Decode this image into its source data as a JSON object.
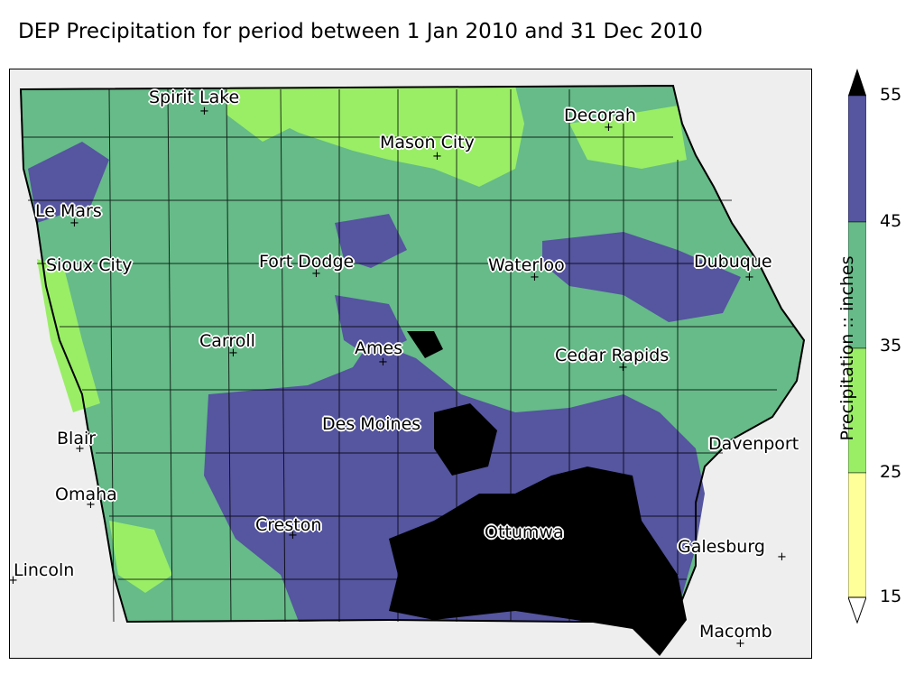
{
  "title": "DEP Precipitation for period between 1 Jan 2010 and 31 Dec 2010",
  "colorbar": {
    "label": "Precipitation :: inches",
    "ticks": [
      "55",
      "45",
      "35",
      "25",
      "15"
    ],
    "bins": [
      {
        "range": "15-25",
        "color": "#ffff99"
      },
      {
        "range": "25-35",
        "color": "#99ee66"
      },
      {
        "range": "35-45",
        "color": "#66bb88"
      },
      {
        "range": "45-55",
        "color": "#5555a0"
      },
      {
        "range": ">55",
        "color": "#000000"
      }
    ],
    "extend": "both"
  },
  "cities": [
    {
      "name": "Spirit Lake"
    },
    {
      "name": "Decorah"
    },
    {
      "name": "Mason City"
    },
    {
      "name": "Le Mars"
    },
    {
      "name": "Sioux City"
    },
    {
      "name": "Fort Dodge"
    },
    {
      "name": "Waterloo"
    },
    {
      "name": "Dubuque"
    },
    {
      "name": "Carroll"
    },
    {
      "name": "Ames"
    },
    {
      "name": "Cedar Rapids"
    },
    {
      "name": "Des Moines"
    },
    {
      "name": "Davenport"
    },
    {
      "name": "Blair"
    },
    {
      "name": "Omaha"
    },
    {
      "name": "Creston"
    },
    {
      "name": "Ottumwa"
    },
    {
      "name": "Galesburg"
    },
    {
      "name": "Lincoln"
    },
    {
      "name": "Macomb"
    }
  ]
}
